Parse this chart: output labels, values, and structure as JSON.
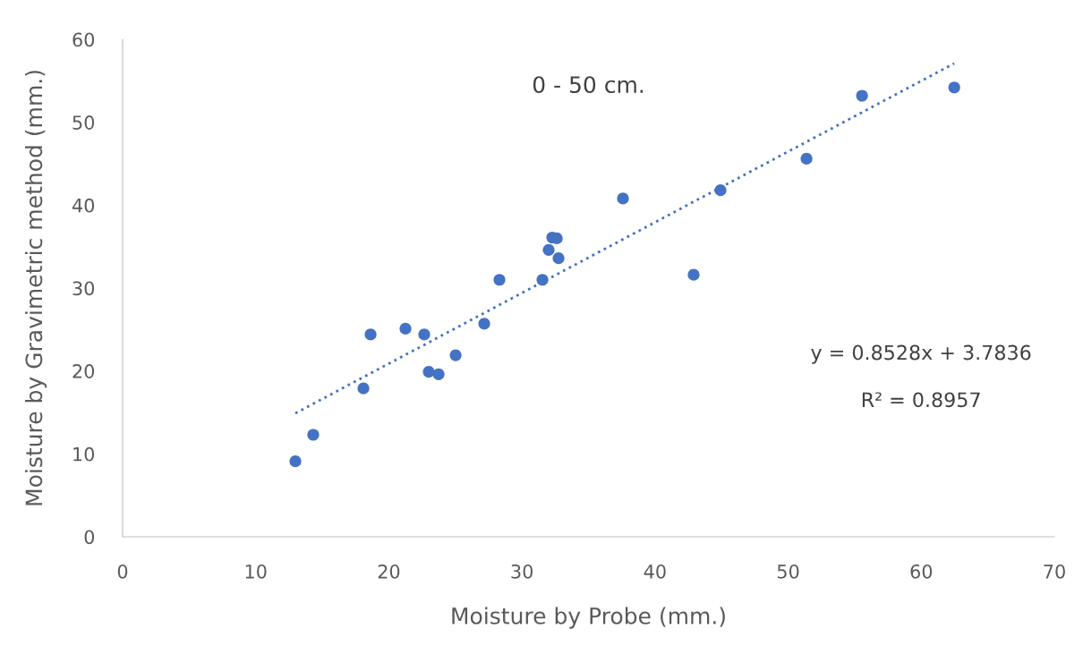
{
  "chart_data": {
    "type": "scatter",
    "title": "0 - 50 cm.",
    "xlabel": "Moisture by Probe (mm.)",
    "ylabel": "Moisture by Gravimetric method (mm.)",
    "xlim": [
      0,
      70
    ],
    "xticks": [
      0,
      10,
      20,
      30,
      40,
      50,
      60,
      70
    ],
    "ylim": [
      0,
      60
    ],
    "yticks": [
      0,
      10,
      20,
      30,
      40,
      50,
      60
    ],
    "grid": false,
    "legend": false,
    "series": [
      {
        "marker": "circle",
        "color": "#4472c4",
        "x": [
          12.98,
          14.32,
          18.09,
          18.63,
          21.25,
          22.66,
          23.0,
          23.74,
          25.02,
          27.17,
          28.31,
          31.54,
          32.01,
          32.28,
          32.62,
          32.75,
          37.59,
          42.9,
          44.92,
          51.38,
          55.55,
          62.48
        ],
        "values": [
          9.1,
          12.3,
          17.9,
          24.4,
          25.1,
          24.4,
          19.9,
          19.6,
          21.9,
          25.7,
          31.0,
          31.0,
          34.6,
          36.1,
          36.0,
          33.6,
          40.8,
          31.6,
          41.8,
          45.6,
          53.2,
          54.2
        ]
      },
      {
        "type": "line",
        "color": "#4472c4",
        "line_style": "dotted",
        "x": [
          12.98,
          62.48
        ],
        "values": [
          14.9,
          57.1
        ]
      }
    ],
    "annotations": [
      "y = 0.8528x + 3.7836",
      "R² = 0.8957"
    ]
  }
}
